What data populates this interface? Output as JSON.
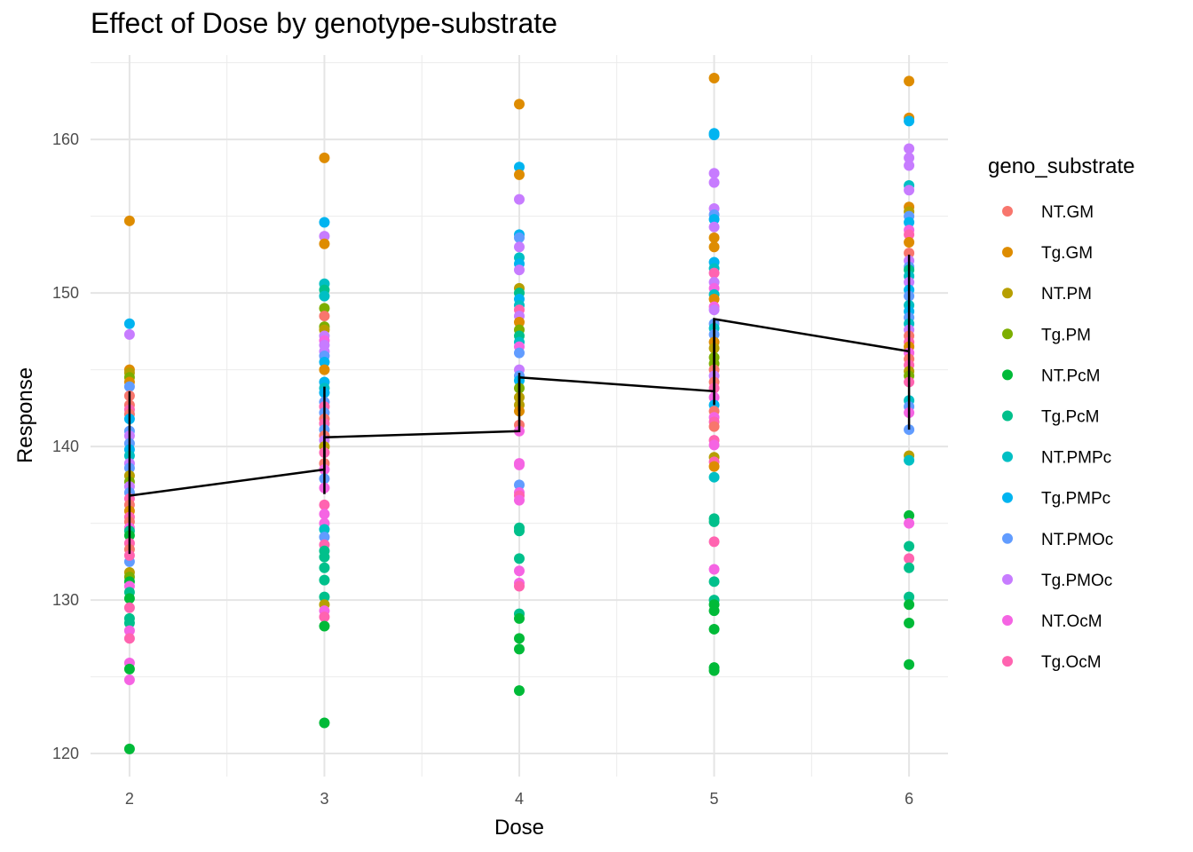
{
  "chart_data": {
    "type": "scatter",
    "title": "Effect of Dose by genotype-substrate",
    "xlabel": "Dose",
    "ylabel": "Response",
    "x_ticks": [
      2,
      3,
      4,
      5,
      6
    ],
    "y_ticks": [
      120,
      130,
      140,
      150,
      160
    ],
    "xlim": [
      1.8,
      6.2
    ],
    "ylim": [
      118.5,
      165.5
    ],
    "grid": true,
    "legend": {
      "title": "geno_substrate",
      "placement": "right",
      "entries": [
        {
          "name": "NT.GM",
          "color": "#F8766D"
        },
        {
          "name": "Tg.GM",
          "color": "#DE8C00"
        },
        {
          "name": "NT.PM",
          "color": "#B79F00"
        },
        {
          "name": "Tg.PM",
          "color": "#7CAE00"
        },
        {
          "name": "NT.PcM",
          "color": "#00BA38"
        },
        {
          "name": "Tg.PcM",
          "color": "#00C08B"
        },
        {
          "name": "NT.PMPc",
          "color": "#00BFC4"
        },
        {
          "name": "Tg.PMPc",
          "color": "#00B4F0"
        },
        {
          "name": "NT.PMOc",
          "color": "#619CFF"
        },
        {
          "name": "Tg.PMOc",
          "color": "#C77CFF"
        },
        {
          "name": "NT.OcM",
          "color": "#F564E3"
        },
        {
          "name": "Tg.OcM",
          "color": "#FF64B0"
        }
      ]
    },
    "points": {
      "2": [
        [
          "Tg.GM",
          154.7
        ],
        [
          "Tg.PMPc",
          148.0
        ],
        [
          "Tg.PMOc",
          147.3
        ],
        [
          "Tg.GM",
          145.0
        ],
        [
          "NT.PM",
          144.8
        ],
        [
          "Tg.PM",
          144.5
        ],
        [
          "Tg.GM",
          144.2
        ],
        [
          "NT.PMOc",
          143.9
        ],
        [
          "NT.GM",
          143.3
        ],
        [
          "NT.GM",
          142.7
        ],
        [
          "Tg.OcM",
          142.4
        ],
        [
          "NT.GM",
          142.1
        ],
        [
          "Tg.PMPc",
          141.8
        ],
        [
          "NT.PMOc",
          141.0
        ],
        [
          "Tg.PMOc",
          140.7
        ],
        [
          "NT.PMOc",
          140.2
        ],
        [
          "Tg.PMPc",
          139.8
        ],
        [
          "NT.PMPc",
          139.4
        ],
        [
          "Tg.PMOc",
          138.9
        ],
        [
          "NT.PMOc",
          138.6
        ],
        [
          "NT.PM",
          138.1
        ],
        [
          "Tg.PM",
          137.7
        ],
        [
          "Tg.PMOc",
          137.4
        ],
        [
          "NT.PMOc",
          137.0
        ],
        [
          "Tg.OcM",
          136.6
        ],
        [
          "NT.GM",
          136.2
        ],
        [
          "Tg.GM",
          135.8
        ],
        [
          "Tg.OcM",
          135.4
        ],
        [
          "NT.GM",
          135.1
        ],
        [
          "NT.OcM",
          134.7
        ],
        [
          "Tg.PcM",
          134.5
        ],
        [
          "NT.PcM",
          134.2
        ],
        [
          "Tg.OcM",
          133.7
        ],
        [
          "NT.GM",
          133.3
        ],
        [
          "NT.PMOc",
          132.5
        ],
        [
          "Tg.OcM",
          132.9
        ],
        [
          "NT.PM",
          131.8
        ],
        [
          "Tg.PM",
          131.5
        ],
        [
          "NT.PcM",
          131.2
        ],
        [
          "NT.OcM",
          130.9
        ],
        [
          "Tg.PcM",
          130.5
        ],
        [
          "NT.PcM",
          130.1
        ],
        [
          "Tg.OcM",
          129.5
        ],
        [
          "Tg.PcM",
          128.8
        ],
        [
          "Tg.PcM",
          128.5
        ],
        [
          "NT.OcM",
          128.0
        ],
        [
          "Tg.OcM",
          127.5
        ],
        [
          "NT.OcM",
          125.9
        ],
        [
          "NT.PcM",
          125.5
        ],
        [
          "NT.OcM",
          124.8
        ],
        [
          "NT.PcM",
          120.3
        ]
      ],
      "3": [
        [
          "Tg.GM",
          158.8
        ],
        [
          "Tg.PMPc",
          154.6
        ],
        [
          "Tg.PMOc",
          153.7
        ],
        [
          "Tg.GM",
          153.2
        ],
        [
          "NT.PMPc",
          150.6
        ],
        [
          "Tg.PcM",
          150.2
        ],
        [
          "NT.PMPc",
          149.8
        ],
        [
          "Tg.PM",
          149.0
        ],
        [
          "NT.GM",
          148.5
        ],
        [
          "Tg.PM",
          147.8
        ],
        [
          "NT.PM",
          147.6
        ],
        [
          "Tg.PMOc",
          147.2
        ],
        [
          "NT.OcM",
          146.9
        ],
        [
          "Tg.PMOc",
          146.6
        ],
        [
          "Tg.PMOc",
          146.2
        ],
        [
          "NT.PMOc",
          145.9
        ],
        [
          "Tg.PMPc",
          145.5
        ],
        [
          "Tg.GM",
          145.0
        ],
        [
          "Tg.PMPc",
          144.2
        ],
        [
          "NT.PMPc",
          143.8
        ],
        [
          "Tg.PMPc",
          143.5
        ],
        [
          "NT.PMOc",
          142.9
        ],
        [
          "Tg.OcM",
          142.6
        ],
        [
          "NT.PMOc",
          142.2
        ],
        [
          "NT.GM",
          141.8
        ],
        [
          "Tg.OcM",
          141.5
        ],
        [
          "NT.PMOc",
          141.1
        ],
        [
          "NT.GM",
          140.7
        ],
        [
          "Tg.PMOc",
          140.4
        ],
        [
          "NT.PM",
          140.0
        ],
        [
          "Tg.OcM",
          139.6
        ],
        [
          "NT.GM",
          138.9
        ],
        [
          "NT.OcM",
          138.5
        ],
        [
          "NT.PMOc",
          137.9
        ],
        [
          "NT.OcM",
          137.3
        ],
        [
          "Tg.OcM",
          136.2
        ],
        [
          "NT.OcM",
          135.6
        ],
        [
          "NT.OcM",
          135.0
        ],
        [
          "NT.PMPc",
          134.6
        ],
        [
          "NT.PMOc",
          134.1
        ],
        [
          "Tg.OcM",
          133.6
        ],
        [
          "Tg.PcM",
          133.2
        ],
        [
          "Tg.PcM",
          132.8
        ],
        [
          "Tg.PcM",
          132.1
        ],
        [
          "Tg.PcM",
          131.3
        ],
        [
          "Tg.PcM",
          130.2
        ],
        [
          "NT.PM",
          129.7
        ],
        [
          "NT.OcM",
          129.3
        ],
        [
          "Tg.OcM",
          128.9
        ],
        [
          "NT.PcM",
          128.3
        ],
        [
          "NT.PcM",
          122.0
        ]
      ],
      "4": [
        [
          "Tg.GM",
          162.3
        ],
        [
          "Tg.PMPc",
          158.2
        ],
        [
          "Tg.GM",
          157.7
        ],
        [
          "Tg.PMOc",
          156.1
        ],
        [
          "Tg.PMPc",
          153.8
        ],
        [
          "NT.PMOc",
          153.6
        ],
        [
          "Tg.PMOc",
          153.0
        ],
        [
          "NT.PMPc",
          152.3
        ],
        [
          "Tg.PMPc",
          151.9
        ],
        [
          "Tg.PMOc",
          151.5
        ],
        [
          "NT.PM",
          150.3
        ],
        [
          "Tg.PcM",
          150.0
        ],
        [
          "Tg.PMPc",
          149.6
        ],
        [
          "NT.PMPc",
          149.2
        ],
        [
          "Tg.OcM",
          148.9
        ],
        [
          "Tg.PMOc",
          148.5
        ],
        [
          "Tg.GM",
          148.1
        ],
        [
          "Tg.PM",
          147.6
        ],
        [
          "Tg.PcM",
          147.2
        ],
        [
          "NT.PMPc",
          146.8
        ],
        [
          "NT.OcM",
          146.5
        ],
        [
          "NT.PMOc",
          146.1
        ],
        [
          "Tg.PMOc",
          145.0
        ],
        [
          "NT.PMOc",
          144.6
        ],
        [
          "Tg.PMPc",
          144.3
        ],
        [
          "Tg.PM",
          143.8
        ],
        [
          "NT.PM",
          143.2
        ],
        [
          "NT.PM",
          142.7
        ],
        [
          "Tg.GM",
          142.3
        ],
        [
          "NT.GM",
          141.4
        ],
        [
          "NT.OcM",
          141.0
        ],
        [
          "NT.OcM",
          138.9
        ],
        [
          "NT.OcM",
          138.8
        ],
        [
          "NT.PMOc",
          137.5
        ],
        [
          "NT.OcM",
          137.0
        ],
        [
          "Tg.OcM",
          136.8
        ],
        [
          "NT.OcM",
          136.5
        ],
        [
          "Tg.PcM",
          134.7
        ],
        [
          "Tg.PcM",
          134.5
        ],
        [
          "Tg.PcM",
          132.7
        ],
        [
          "NT.OcM",
          131.9
        ],
        [
          "NT.OcM",
          131.1
        ],
        [
          "Tg.OcM",
          130.9
        ],
        [
          "Tg.PcM",
          129.1
        ],
        [
          "NT.PcM",
          128.8
        ],
        [
          "NT.PcM",
          127.5
        ],
        [
          "NT.PcM",
          126.8
        ],
        [
          "NT.PcM",
          124.1
        ]
      ],
      "5": [
        [
          "Tg.GM",
          164.0
        ],
        [
          "Tg.PMPc",
          160.4
        ],
        [
          "Tg.PMPc",
          160.3
        ],
        [
          "Tg.PMOc",
          157.8
        ],
        [
          "Tg.PMOc",
          157.2
        ],
        [
          "Tg.PMOc",
          155.5
        ],
        [
          "NT.PMOc",
          155.1
        ],
        [
          "Tg.PMPc",
          154.8
        ],
        [
          "Tg.PMOc",
          154.3
        ],
        [
          "Tg.GM",
          153.6
        ],
        [
          "Tg.GM",
          153.0
        ],
        [
          "Tg.PMPc",
          152.0
        ],
        [
          "NT.PMPc",
          151.6
        ],
        [
          "Tg.OcM",
          151.3
        ],
        [
          "Tg.PMOc",
          150.7
        ],
        [
          "NT.OcM",
          150.3
        ],
        [
          "NT.PMPc",
          149.9
        ],
        [
          "Tg.GM",
          149.6
        ],
        [
          "NT.OcM",
          149.1
        ],
        [
          "Tg.PMOc",
          148.9
        ],
        [
          "NT.PMOc",
          148.0
        ],
        [
          "NT.PMPc",
          147.7
        ],
        [
          "NT.PMOc",
          147.3
        ],
        [
          "Tg.GM",
          146.8
        ],
        [
          "NT.PM",
          146.4
        ],
        [
          "Tg.PM",
          145.8
        ],
        [
          "Tg.PM",
          145.4
        ],
        [
          "NT.GM",
          145.0
        ],
        [
          "Tg.PMOc",
          144.6
        ],
        [
          "NT.GM",
          144.2
        ],
        [
          "Tg.OcM",
          143.8
        ],
        [
          "NT.OcM",
          143.2
        ],
        [
          "Tg.PMPc",
          142.7
        ],
        [
          "NT.GM",
          142.3
        ],
        [
          "NT.OcM",
          141.9
        ],
        [
          "Tg.OcM",
          141.6
        ],
        [
          "NT.GM",
          141.3
        ],
        [
          "Tg.OcM",
          140.4
        ],
        [
          "NT.OcM",
          140.1
        ],
        [
          "NT.PM",
          139.3
        ],
        [
          "Tg.OcM",
          139.0
        ],
        [
          "Tg.GM",
          138.7
        ],
        [
          "NT.PMPc",
          138.0
        ],
        [
          "Tg.PcM",
          135.3
        ],
        [
          "Tg.PcM",
          135.1
        ],
        [
          "Tg.OcM",
          133.8
        ],
        [
          "NT.OcM",
          132.0
        ],
        [
          "Tg.PcM",
          131.2
        ],
        [
          "Tg.PcM",
          130.0
        ],
        [
          "NT.PcM",
          129.7
        ],
        [
          "NT.PcM",
          129.3
        ],
        [
          "NT.PcM",
          128.1
        ],
        [
          "NT.PcM",
          125.6
        ],
        [
          "NT.PcM",
          125.4
        ]
      ],
      "6": [
        [
          "Tg.GM",
          163.8
        ],
        [
          "Tg.GM",
          161.4
        ],
        [
          "Tg.PMPc",
          161.2
        ],
        [
          "Tg.PMOc",
          159.4
        ],
        [
          "Tg.PMOc",
          158.8
        ],
        [
          "Tg.PMOc",
          158.3
        ],
        [
          "NT.PMPc",
          157.0
        ],
        [
          "Tg.PMOc",
          156.7
        ],
        [
          "Tg.GM",
          155.6
        ],
        [
          "NT.PM",
          155.3
        ],
        [
          "NT.PMOc",
          155.0
        ],
        [
          "Tg.PMPc",
          154.6
        ],
        [
          "NT.OcM",
          154.1
        ],
        [
          "Tg.OcM",
          153.8
        ],
        [
          "Tg.GM",
          153.3
        ],
        [
          "NT.GM",
          152.6
        ],
        [
          "Tg.PMOc",
          152.1
        ],
        [
          "NT.PMOc",
          151.7
        ],
        [
          "Tg.PcM",
          151.5
        ],
        [
          "NT.PMPc",
          151.1
        ],
        [
          "Tg.PMOc",
          150.7
        ],
        [
          "Tg.PMPc",
          150.2
        ],
        [
          "NT.PMOc",
          149.8
        ],
        [
          "NT.PMPc",
          149.2
        ],
        [
          "Tg.PMPc",
          148.8
        ],
        [
          "NT.PMOc",
          148.4
        ],
        [
          "NT.PMPc",
          148.0
        ],
        [
          "Tg.PMOc",
          147.6
        ],
        [
          "NT.GM",
          147.2
        ],
        [
          "Tg.OcM",
          146.8
        ],
        [
          "Tg.GM",
          146.5
        ],
        [
          "NT.OcM",
          146.1
        ],
        [
          "NT.GM",
          145.7
        ],
        [
          "Tg.OcM",
          145.3
        ],
        [
          "NT.PM",
          144.9
        ],
        [
          "Tg.PM",
          144.6
        ],
        [
          "Tg.OcM",
          144.2
        ],
        [
          "NT.PMPc",
          143.0
        ],
        [
          "NT.PMOc",
          142.6
        ],
        [
          "NT.OcM",
          142.2
        ],
        [
          "NT.PMOc",
          141.1
        ],
        [
          "NT.PM",
          139.4
        ],
        [
          "NT.PMPc",
          139.1
        ],
        [
          "NT.PcM",
          135.5
        ],
        [
          "NT.OcM",
          135.0
        ],
        [
          "Tg.PcM",
          133.5
        ],
        [
          "Tg.OcM",
          132.7
        ],
        [
          "Tg.PcM",
          132.1
        ],
        [
          "Tg.PcM",
          130.2
        ],
        [
          "NT.PcM",
          129.7
        ],
        [
          "NT.PcM",
          128.5
        ],
        [
          "NT.PcM",
          125.8
        ]
      ]
    },
    "mean_line": {
      "x": [
        2,
        3,
        3,
        4,
        4,
        5,
        5,
        6
      ],
      "y": [
        136.8,
        138.5,
        140.6,
        141.0,
        144.5,
        143.6,
        148.3,
        146.2
      ]
    },
    "error_bars": [
      {
        "x": 2,
        "low": 133.0,
        "high": 143.6
      },
      {
        "x": 3,
        "low": 136.9,
        "high": 143.9
      },
      {
        "x": 4,
        "low": 142.3,
        "high": 144.8
      },
      {
        "x": 5,
        "low": 142.7,
        "high": 148.3
      },
      {
        "x": 6,
        "low": 141.1,
        "high": 152.5
      }
    ]
  }
}
